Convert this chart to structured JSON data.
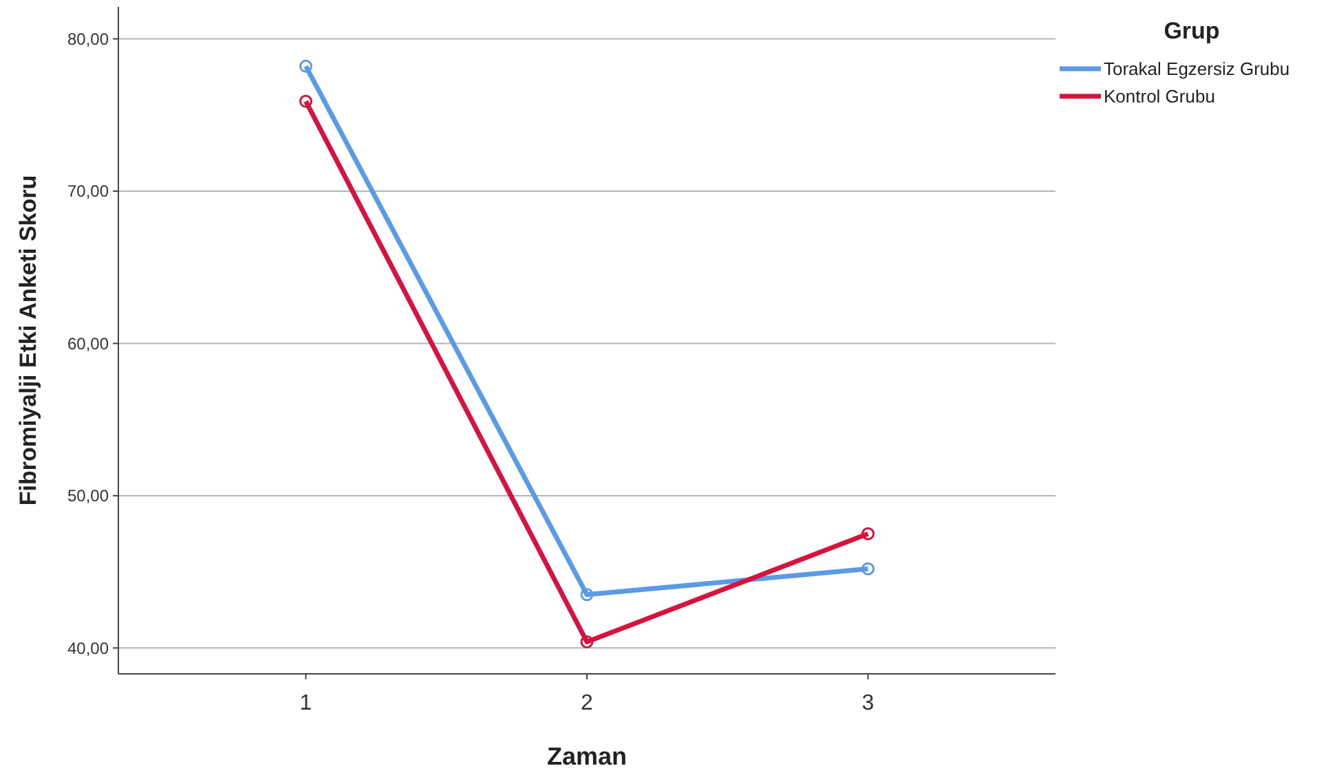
{
  "chart_data": {
    "type": "line",
    "xlabel": "Zaman",
    "ylabel": "Fibromiyalji Etki Anketi Skoru",
    "legend_title": "Grup",
    "categories": [
      "1",
      "2",
      "3"
    ],
    "series": [
      {
        "name": "Torakal Egzersiz Grubu",
        "color": "#5b9be6",
        "values": [
          78.2,
          43.5,
          45.2
        ]
      },
      {
        "name": "Kontrol Grubu",
        "color": "#d6133f",
        "values": [
          75.9,
          40.4,
          47.5
        ]
      }
    ],
    "ylim": [
      38.3,
      82.1
    ],
    "yticks": [
      {
        "value": 40,
        "label": "40,00"
      },
      {
        "value": 50,
        "label": "50,00"
      },
      {
        "value": 60,
        "label": "60,00"
      },
      {
        "value": 70,
        "label": "70,00"
      },
      {
        "value": 80,
        "label": "80,00"
      }
    ],
    "grid": "y",
    "legend": "top right",
    "marker": "circle",
    "line_style": "solid"
  }
}
